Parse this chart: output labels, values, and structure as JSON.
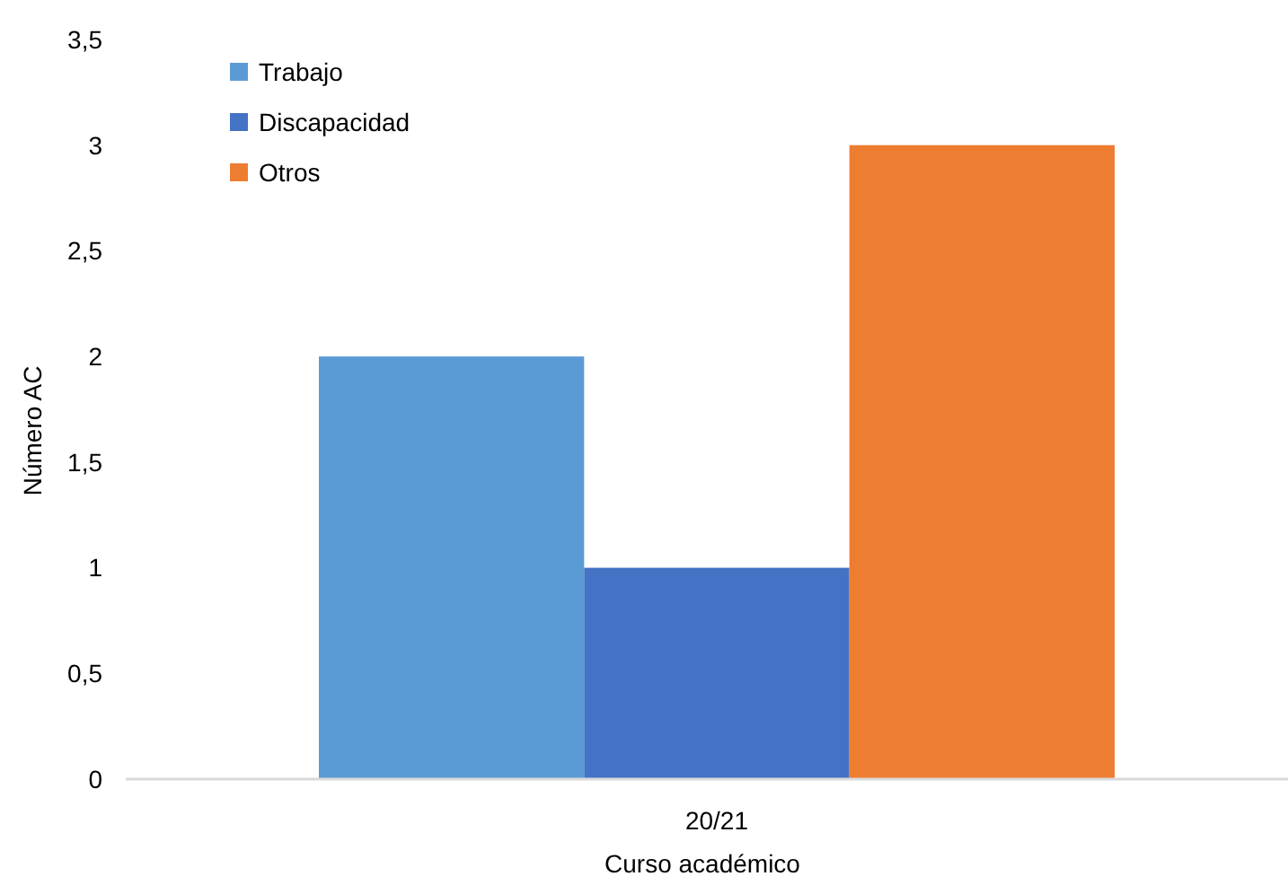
{
  "chart_data": {
    "type": "bar",
    "categories": [
      "20/21"
    ],
    "series": [
      {
        "name": "Trabajo",
        "color": "#5b9bd5",
        "values": [
          2
        ]
      },
      {
        "name": "Discapacidad",
        "color": "#4472c4",
        "values": [
          1
        ]
      },
      {
        "name": "Otros",
        "color": "#ed7d31",
        "values": [
          3
        ]
      }
    ],
    "xlabel": "Curso académico",
    "ylabel": "Número AC",
    "ylim": [
      0,
      3.5
    ],
    "yticks": [
      0,
      {
        "value": 0.5,
        "label": "0,5"
      },
      1,
      {
        "value": 1.5,
        "label": "1,5"
      },
      2,
      {
        "value": 2.5,
        "label": "2,5"
      },
      3,
      {
        "value": 3.5,
        "label": "3,5"
      }
    ],
    "legend": "top left"
  }
}
